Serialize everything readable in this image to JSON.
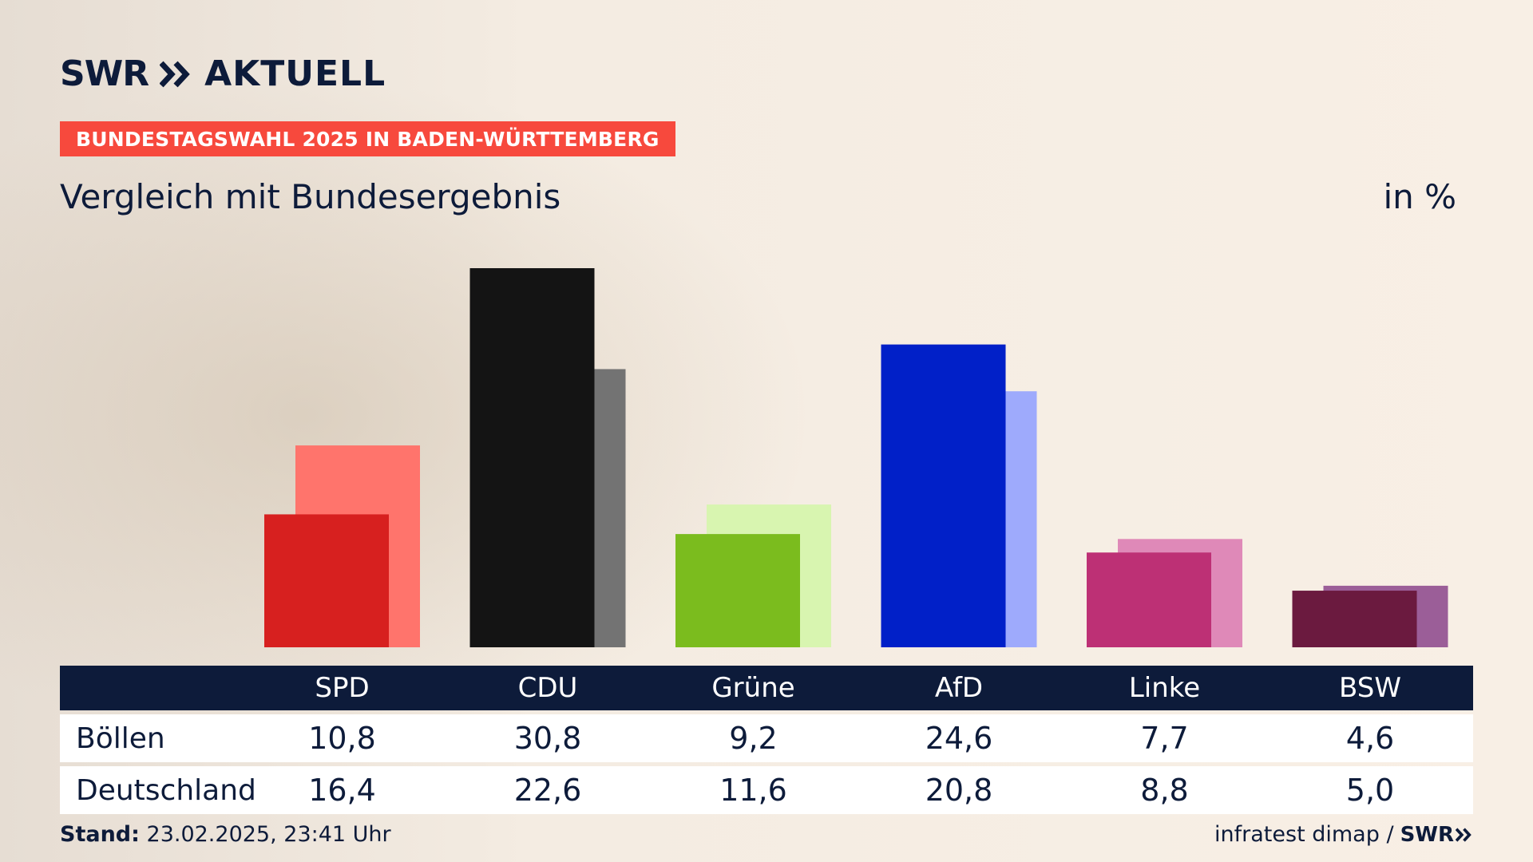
{
  "header": {
    "logo_left": "SWR",
    "logo_right": "AKTUELL",
    "banner": "BUNDESTAGSWAHL 2025 IN BADEN-WÜRTTEMBERG",
    "subtitle": "Vergleich mit Bundesergebnis",
    "unit": "in %"
  },
  "chart_data": {
    "type": "bar",
    "categories": [
      "SPD",
      "CDU",
      "Grüne",
      "AfD",
      "Linke",
      "BSW"
    ],
    "series": [
      {
        "name": "Böllen",
        "values": [
          10.8,
          30.8,
          9.2,
          24.6,
          7.7,
          4.6
        ]
      },
      {
        "name": "Deutschland",
        "values": [
          16.4,
          22.6,
          11.6,
          20.8,
          8.8,
          5.0
        ]
      }
    ],
    "ylim": [
      0,
      30.8
    ],
    "colors_primary": [
      "#d7201f",
      "#141414",
      "#7bbc1e",
      "#0120c8",
      "#bd3075",
      "#6b1a3f"
    ],
    "colors_secondary": [
      "#ff746c",
      "#737373",
      "#d8f5b0",
      "#9eaafc",
      "#df89b8",
      "#9b5e98"
    ]
  },
  "table": {
    "row1_label": "Böllen",
    "row2_label": "Deutschland",
    "row1_values": [
      "10,8",
      "30,8",
      "9,2",
      "24,6",
      "7,7",
      "4,6"
    ],
    "row2_values": [
      "16,4",
      "22,6",
      "11,6",
      "20,8",
      "8,8",
      "5,0"
    ]
  },
  "footer": {
    "stand_label": "Stand:",
    "stand_value": "23.02.2025, 23:41 Uhr",
    "source": "infratest dimap /",
    "source_logo": "SWR"
  },
  "icons": {
    "logo_chevron": "double-chevron-right-icon",
    "footer_chevron": "double-chevron-right-icon"
  }
}
